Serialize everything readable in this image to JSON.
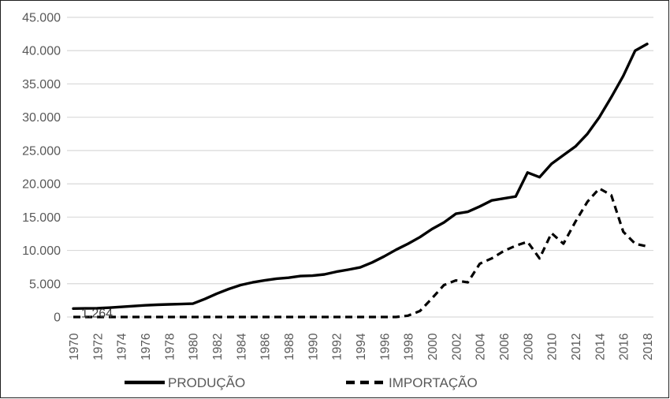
{
  "chart_data": {
    "type": "line",
    "x": [
      1970,
      1971,
      1972,
      1973,
      1974,
      1975,
      1976,
      1977,
      1978,
      1979,
      1980,
      1981,
      1982,
      1983,
      1984,
      1985,
      1986,
      1987,
      1988,
      1989,
      1990,
      1991,
      1992,
      1993,
      1994,
      1995,
      1996,
      1997,
      1998,
      1999,
      2000,
      2001,
      2002,
      2003,
      2004,
      2005,
      2006,
      2007,
      2008,
      2009,
      2010,
      2011,
      2012,
      2013,
      2014,
      2015,
      2016,
      2017,
      2018
    ],
    "series": [
      {
        "name": "PRODUÇÃO",
        "style": "solid",
        "color": "#000000",
        "values": [
          1264,
          1290,
          1320,
          1400,
          1520,
          1640,
          1750,
          1840,
          1900,
          1940,
          2000,
          2700,
          3500,
          4200,
          4800,
          5200,
          5500,
          5750,
          5900,
          6150,
          6200,
          6400,
          6800,
          7100,
          7450,
          8200,
          9100,
          10100,
          11000,
          12000,
          13200,
          14200,
          15500,
          15800,
          16600,
          17500,
          17800,
          18100,
          21700,
          21000,
          23000,
          24300,
          25600,
          27500,
          30000,
          33000,
          36200,
          40000,
          41000
        ]
      },
      {
        "name": "IMPORTAÇÃO",
        "style": "dashed",
        "color": "#000000",
        "values": [
          0,
          0,
          0,
          0,
          0,
          0,
          0,
          0,
          0,
          0,
          0,
          0,
          0,
          0,
          0,
          0,
          0,
          0,
          0,
          0,
          0,
          0,
          0,
          0,
          0,
          0,
          0,
          0,
          200,
          900,
          2800,
          4800,
          5500,
          5200,
          8000,
          8800,
          9900,
          10700,
          11300,
          8800,
          12600,
          11000,
          14300,
          17300,
          19300,
          18300,
          12800,
          11000,
          10600
        ]
      }
    ],
    "title": "",
    "xlabel": "",
    "ylabel": "",
    "ylim": [
      0,
      45000
    ],
    "y_tick_step": 5000,
    "x_tick_step": 2,
    "y_tick_labels": [
      "0",
      "5.000",
      "10.000",
      "15.000",
      "20.000",
      "25.000",
      "30.000",
      "35.000",
      "40.000",
      "45.000"
    ],
    "x_tick_labels": [
      "1970",
      "1972",
      "1974",
      "1976",
      "1978",
      "1980",
      "1982",
      "1984",
      "1986",
      "1988",
      "1990",
      "1992",
      "1994",
      "1996",
      "1998",
      "2000",
      "2002",
      "2004",
      "2006",
      "2008",
      "2010",
      "2012",
      "2014",
      "2016",
      "2018"
    ],
    "grid": true,
    "legend_position": "bottom",
    "annotation": {
      "text": "1.264",
      "year": 1970,
      "series": "PRODUÇÃO"
    }
  },
  "colors": {
    "gridline": "#d9d9d9",
    "axis_text": "#595959",
    "legend_text": "#595959",
    "annotation_text": "#404040",
    "line": "#000000",
    "border": "#1f1f1f"
  },
  "legend": {
    "items": [
      {
        "label": "PRODUÇÃO",
        "style": "solid"
      },
      {
        "label": "IMPORTAÇÃO",
        "style": "dashed"
      }
    ]
  }
}
